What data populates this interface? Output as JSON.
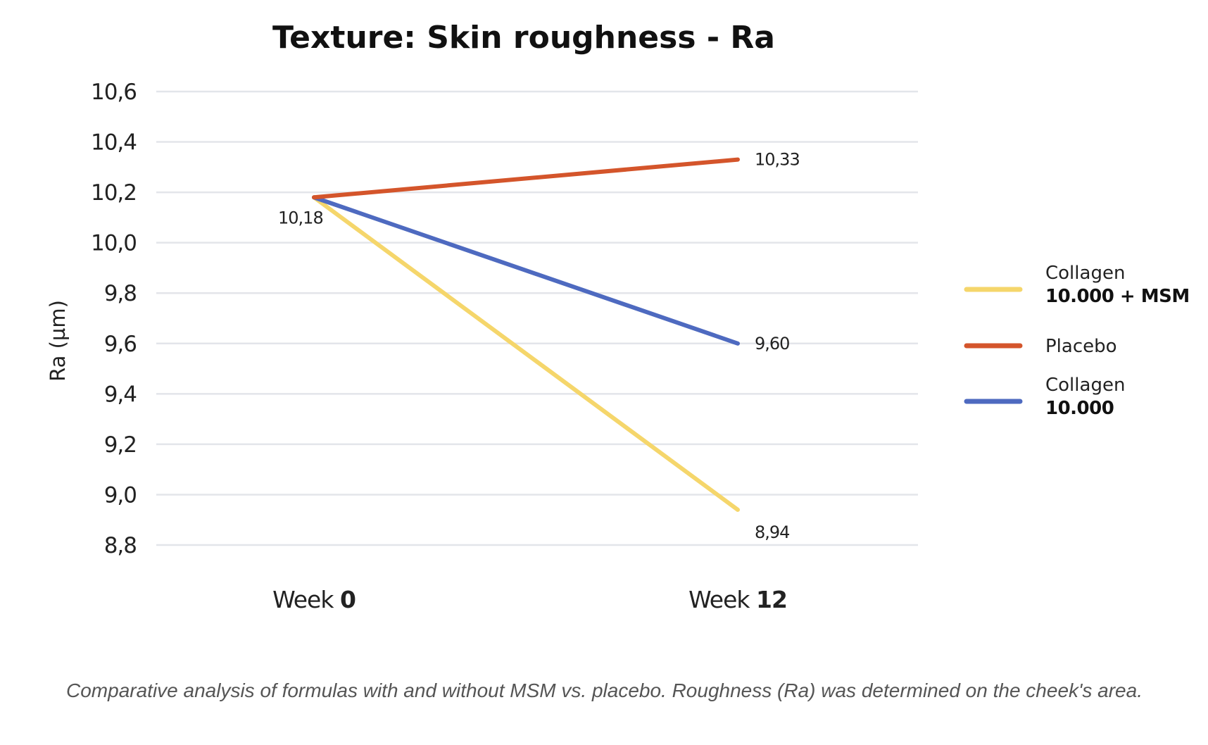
{
  "chart_data": {
    "type": "line",
    "title": "Texture: Skin roughness - Ra",
    "ylabel": "Ra (µm)",
    "xlabel": "",
    "ylim": [
      8.8,
      10.6
    ],
    "yticks": [
      10.6,
      10.4,
      10.2,
      10.0,
      9.8,
      9.6,
      9.4,
      9.2,
      9.0,
      8.8
    ],
    "ytick_labels": [
      "10,6",
      "10,4",
      "10,2",
      "10,0",
      "9,8",
      "9,6",
      "9,4",
      "9,2",
      "9,0",
      "8,8"
    ],
    "grid": true,
    "categories": [
      {
        "prefix": "Week ",
        "bold": "0"
      },
      {
        "prefix": "Week ",
        "bold": "12"
      }
    ],
    "series": [
      {
        "name": "Collagen",
        "name_bold": "10.000 + MSM",
        "color": "#f5d66b",
        "values": [
          10.18,
          8.94
        ],
        "end_label": "8,94"
      },
      {
        "name": "Placebo",
        "name_bold": "",
        "color": "#d4552b",
        "values": [
          10.18,
          10.33
        ],
        "end_label": "10,33"
      },
      {
        "name": "Collagen",
        "name_bold": "10.000",
        "color": "#4e6ac0",
        "values": [
          10.18,
          9.6
        ],
        "end_label": "9,60"
      }
    ],
    "start_label": "10,18",
    "legend_position": "right"
  },
  "caption": "Comparative analysis of formulas with and without MSM vs. placebo. Roughness (Ra) was determined on the cheek's area."
}
